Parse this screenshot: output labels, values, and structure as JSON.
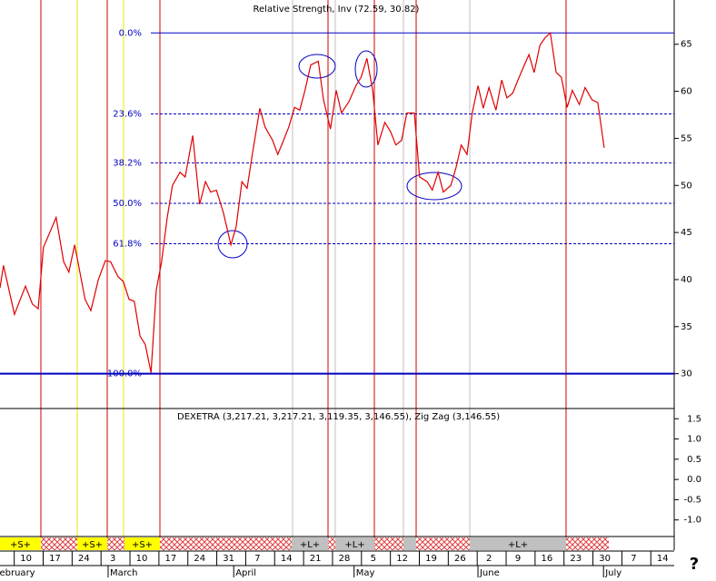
{
  "chart_data": [
    {
      "type": "line",
      "title": "Relative Strength, Inv (72.59, 30.82)",
      "x": [
        -4.5,
        -3.9,
        -2.0,
        -0.1,
        1.1,
        2.1,
        3.0,
        5.2,
        6.5,
        7.4,
        8.4,
        10.2,
        11.2,
        12.5,
        13.7,
        14.6,
        15.9,
        16.8,
        17.8,
        18.7,
        19.7,
        20.6,
        21.6,
        22.5,
        23.4,
        24.4,
        25.3,
        26.6,
        27.5,
        28.8,
        30.0,
        31.0,
        31.9,
        32.9,
        34.1,
        35.4,
        36.3,
        37.3,
        38.2,
        39.1,
        40.4,
        41.3,
        42.6,
        43.5,
        44.5,
        45.4,
        46.4,
        47.3,
        48.2,
        49.2,
        50.5,
        51.4,
        52.6,
        53.6,
        54.5,
        55.8,
        57.0,
        57.9,
        58.9,
        59.9,
        60.8,
        62.0,
        63.0,
        63.9,
        64.9,
        65.8,
        67.1,
        68.0,
        69.3,
        70.2,
        71.2,
        72.1,
        73.4,
        74.3,
        75.2,
        76.2,
        77.1,
        78.1,
        79.0,
        80.0,
        81.2,
        82.2,
        83.1,
        84.1,
        85.0,
        85.9,
        86.9,
        87.8,
        88.8,
        89.7,
        90.6,
        91.6,
        92.5,
        93.5,
        94.4,
        95.6,
        96.6,
        97.8,
        98.8,
        99.9
      ],
      "series": [
        {
          "name": "Relative Strength",
          "color": "#e00000",
          "values": [
            39.1,
            41.5,
            36.3,
            39.3,
            37.4,
            36.9,
            43.4,
            46.6,
            41.9,
            40.8,
            43.7,
            37.9,
            36.7,
            40.0,
            42.0,
            41.9,
            40.3,
            39.8,
            37.9,
            37.7,
            34.0,
            33.1,
            30.1,
            38.9,
            41.8,
            46.6,
            50.0,
            51.4,
            50.9,
            55.3,
            48.0,
            50.4,
            49.3,
            49.5,
            47.1,
            43.7,
            45.6,
            50.4,
            49.7,
            53.3,
            58.2,
            56.2,
            54.8,
            53.3,
            54.8,
            56.2,
            58.3,
            58.0,
            60.1,
            62.8,
            63.2,
            59.1,
            56.0,
            60.1,
            57.7,
            58.9,
            60.6,
            61.5,
            63.5,
            60.1,
            54.3,
            56.7,
            55.7,
            54.3,
            54.8,
            57.7,
            57.7,
            50.9,
            50.4,
            49.5,
            51.4,
            49.3,
            50.0,
            51.9,
            54.3,
            53.3,
            57.7,
            60.6,
            58.2,
            60.4,
            58.0,
            61.2,
            59.3,
            59.8,
            61.2,
            62.5,
            63.9,
            62.0,
            64.9,
            65.7,
            66.2,
            62.0,
            61.5,
            58.3,
            60.1,
            58.6,
            60.4,
            59.1,
            58.8,
            54.0
          ]
        }
      ],
      "fib_levels": [
        {
          "value": 66.2,
          "label": "0.0%"
        },
        {
          "value": 57.6,
          "label": "23.6%"
        },
        {
          "value": 52.4,
          "label": "38.2%"
        },
        {
          "value": 48.1,
          "label": "50.0%"
        },
        {
          "value": 43.8,
          "label": "61.8%"
        },
        {
          "value": 30.0,
          "label": "100.0%"
        }
      ],
      "fib_color": "#0000c0",
      "xlim": [
        -4.5,
        112
      ],
      "xticks": [
        {
          "value": 0,
          "label": "10"
        },
        {
          "value": 5,
          "label": "17"
        },
        {
          "value": 10,
          "label": "24"
        },
        {
          "value": 15,
          "label": "3"
        },
        {
          "value": 20,
          "label": "10"
        },
        {
          "value": 25,
          "label": "17"
        },
        {
          "value": 30,
          "label": "24"
        },
        {
          "value": 35,
          "label": "31"
        },
        {
          "value": 40,
          "label": "7"
        },
        {
          "value": 45,
          "label": "14"
        },
        {
          "value": 50,
          "label": "21"
        },
        {
          "value": 55,
          "label": "28"
        },
        {
          "value": 60,
          "label": "5"
        },
        {
          "value": 65,
          "label": "12"
        },
        {
          "value": 70,
          "label": "19"
        },
        {
          "value": 75,
          "label": "26"
        },
        {
          "value": 80,
          "label": "2"
        },
        {
          "value": 85,
          "label": "9"
        },
        {
          "value": 90,
          "label": "16"
        },
        {
          "value": 95,
          "label": "23"
        },
        {
          "value": 100,
          "label": "30"
        },
        {
          "value": 105,
          "label": "7"
        },
        {
          "value": 110,
          "label": "14"
        }
      ],
      "months": [
        {
          "value": -5.4,
          "label": "February"
        },
        {
          "value": 14.5,
          "label": "March"
        },
        {
          "value": 36.2,
          "label": "April"
        },
        {
          "value": 57.0,
          "label": "May"
        },
        {
          "value": 78.4,
          "label": "June"
        },
        {
          "value": 100.1,
          "label": "July"
        }
      ],
      "ylim": [
        26.3,
        69.7
      ],
      "yticks": [
        30,
        35,
        40,
        45,
        50,
        55,
        60,
        65
      ]
    },
    {
      "type": "line",
      "title": "DEXETRA (3,217.21, 3,217.21, 3,119.35, 3,146.55), Zig Zag (3,146.55)",
      "ylim": [
        -1.41,
        1.73
      ],
      "yticks": [
        {
          "value": 1.5,
          "label": "1.5"
        },
        {
          "value": 1,
          "label": "1.0"
        },
        {
          "value": 0.5,
          "label": "0.5"
        },
        {
          "value": 0,
          "label": "0.0"
        },
        {
          "value": -0.5,
          "label": "-0.5"
        },
        {
          "value": -1,
          "label": "-1.0"
        }
      ]
    }
  ],
  "signals": [
    "+S+",
    "+S+",
    "+S+",
    "+L+",
    "+L+",
    "+L+"
  ],
  "help": "?"
}
